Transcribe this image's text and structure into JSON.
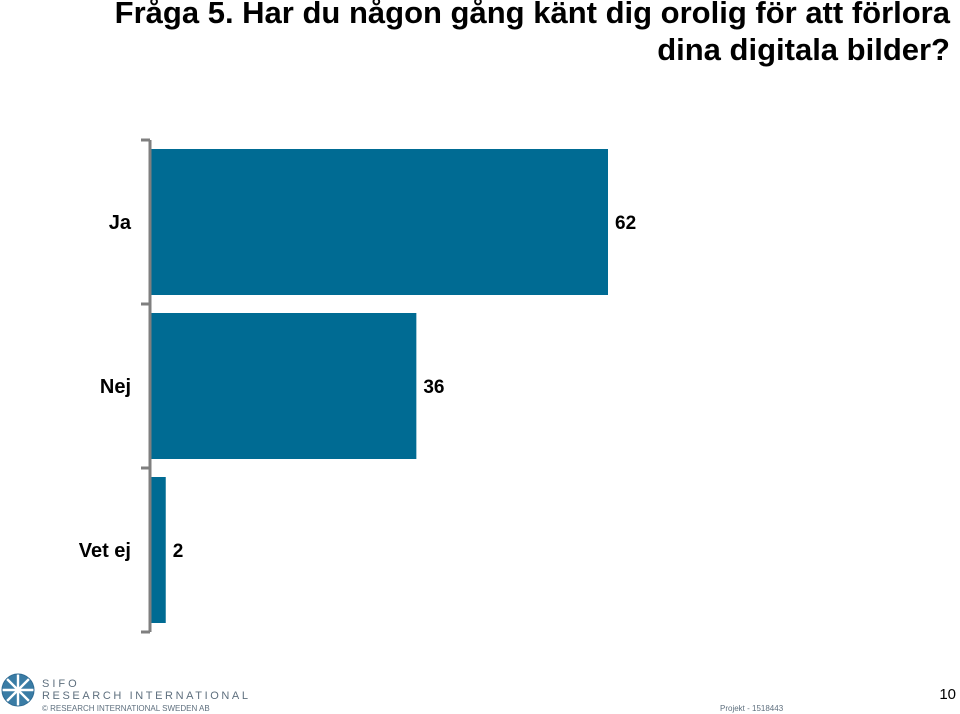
{
  "title": {
    "line1": "Fråga 5. Har du någon gång känt dig orolig för att förlora",
    "line2": "dina digitala bilder?"
  },
  "chart_data": {
    "type": "bar",
    "orientation": "horizontal",
    "categories": [
      "Ja",
      "Nej",
      "Vet ej"
    ],
    "values": [
      62,
      36,
      2
    ],
    "xlim": [
      0,
      100
    ],
    "grid": false,
    "legend": "none",
    "bar_color": "#006b93"
  },
  "footer": {
    "brand_line1": "SIFO",
    "brand_line2": "RESEARCH INTERNATIONAL",
    "copyright": "© RESEARCH INTERNATIONAL SWEDEN AB",
    "project": "Projekt - 1518443",
    "page_number": "10",
    "logo_icon": "globe-logo-icon"
  },
  "colors": {
    "bar": "#006b93",
    "axis": "#7f7f7f",
    "brand_text": "#5e6f7e"
  }
}
